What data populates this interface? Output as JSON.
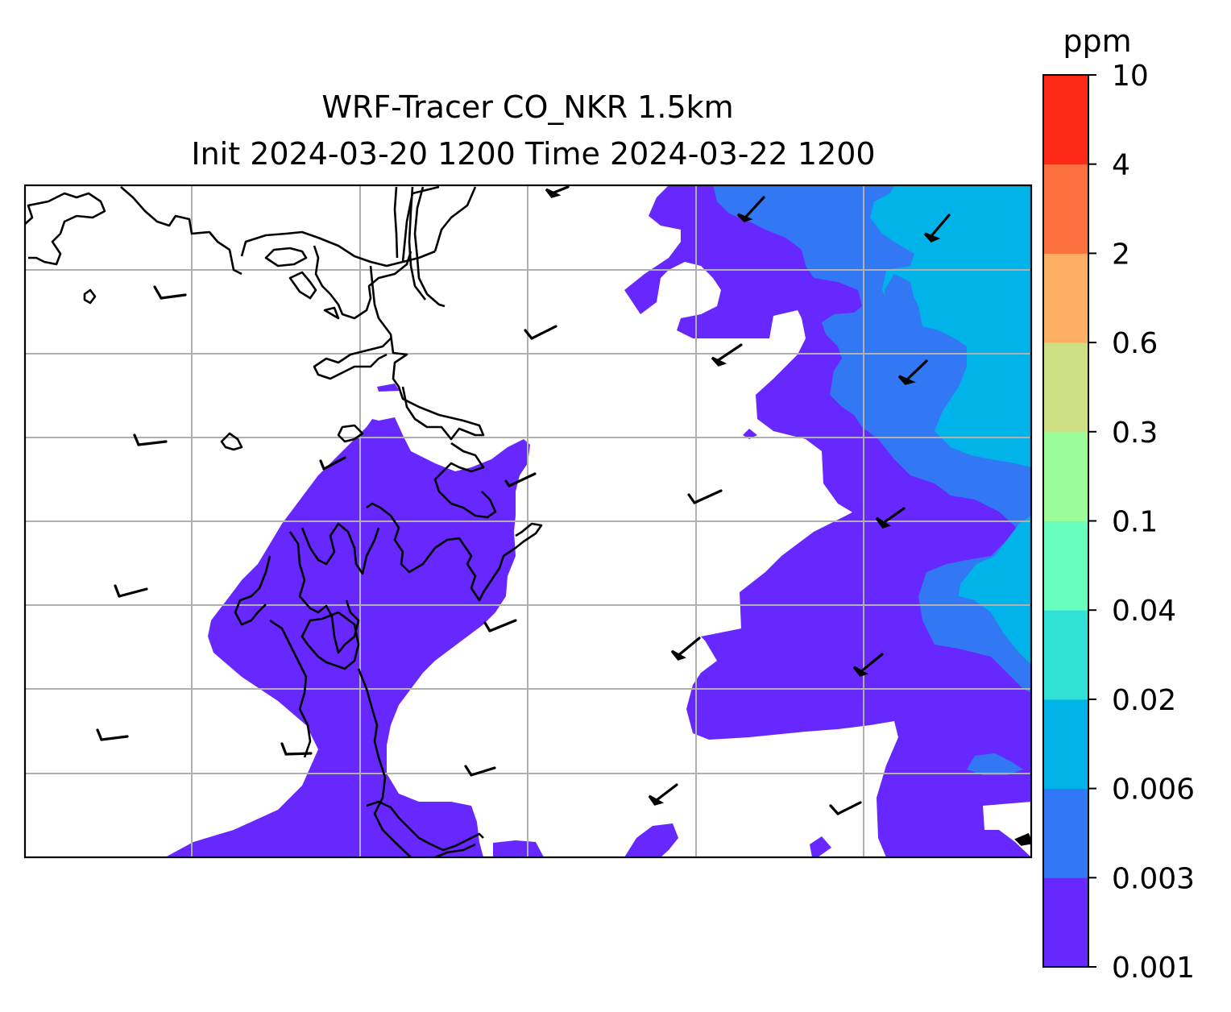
{
  "title": {
    "line1": "WRF-Tracer CO_NKR 1.5km",
    "line2": "Init 2024-03-20 1200 Time 2024-03-22 1200"
  },
  "colorbar": {
    "unit": "ppm",
    "levels": [
      "0.001",
      "0.003",
      "0.006",
      "0.02",
      "0.04",
      "0.1",
      "0.3",
      "0.6",
      "2",
      "4",
      "10"
    ],
    "colors": [
      "#6628fe",
      "#3277f4",
      "#00b4ea",
      "#30e0d4",
      "#66fdbd",
      "#9afd9a",
      "#cfe084",
      "#fdb064",
      "#fd7140",
      "#fd2815"
    ]
  },
  "map": {
    "fill_concentration_colors": {
      "level1": "#6628fe",
      "level2": "#3277f4",
      "level3": "#00b4ea"
    },
    "gridline_color": "#b0b0b0",
    "coastline_color": "#000000",
    "wind_barbs": "black"
  }
}
